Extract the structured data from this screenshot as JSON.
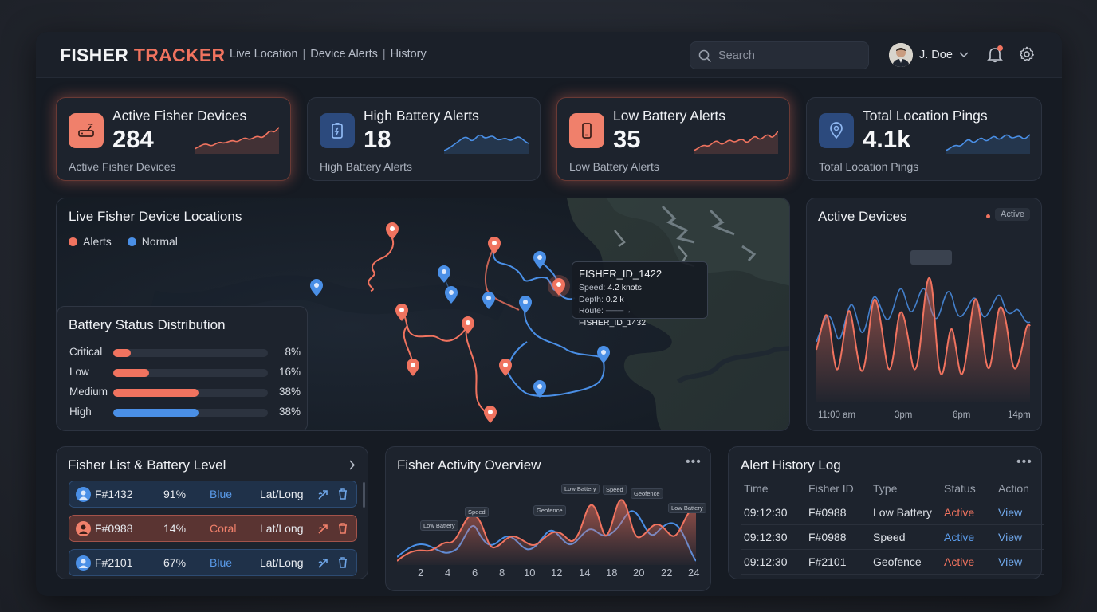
{
  "header": {
    "brand_main": "FISHER",
    "brand_accent": "TRACKER",
    "nav": [
      "Live Location",
      "Device Alerts",
      "History"
    ],
    "search_placeholder": "Search",
    "user_name": "J. Doe"
  },
  "stats": [
    {
      "title": "Active Fisher Devices",
      "value": "284",
      "subtitle": "Active Fisher Devices",
      "icon": "router-icon",
      "accent": "#f0735f"
    },
    {
      "title": "High Battery Alerts",
      "value": "18",
      "subtitle": "High Battery Alerts",
      "icon": "battery-charging-icon",
      "accent": "#5a9bea"
    },
    {
      "title": "Low Battery Alerts",
      "value": "35",
      "subtitle": "Low Battery Alerts",
      "icon": "phone-icon",
      "accent": "#f0735f"
    },
    {
      "title": "Total Location Pings",
      "value": "4.1k",
      "subtitle": "Total Location Pings",
      "icon": "location-pin-icon",
      "accent": "#5a9bea"
    }
  ],
  "map": {
    "title": "Live Fisher Device Locations",
    "legend": [
      {
        "label": "Alerts",
        "color": "#f0735f"
      },
      {
        "label": "Normal",
        "color": "#4a8fe6"
      }
    ],
    "tooltip": {
      "title": "FISHER_ID_1422",
      "speed_label": "Speed:",
      "speed_value": "4.2 knots",
      "depth_label": "Depth:",
      "depth_value": "0.2 k",
      "route_label": "Route:",
      "route_value": "FISHER_ID_1432"
    }
  },
  "battery_status": {
    "title": "Battery Status Distribution",
    "rows": [
      {
        "label": "Critical",
        "pct_text": "8%",
        "value": 0.08,
        "color": "#f0735f"
      },
      {
        "label": "Low",
        "pct_text": "16%",
        "value": 0.16,
        "color": "#f0735f"
      },
      {
        "label": "Medium",
        "pct_text": "38%",
        "value": 0.38,
        "color": "#f0735f"
      },
      {
        "label": "High",
        "pct_text": "38%",
        "value": 0.38,
        "color": "#4a8fe6"
      }
    ]
  },
  "active_devices": {
    "title": "Active Devices",
    "badge": "Active",
    "x_labels": [
      "11:00 am",
      "3pm",
      "6pm",
      "14pm"
    ]
  },
  "fisher_list": {
    "title": "Fisher List & Battery Level",
    "rows": [
      {
        "id": "F#1432",
        "battery": "91%",
        "color_name": "Blue",
        "coords": "Lat/Long",
        "style": "blue"
      },
      {
        "id": "F#0988",
        "battery": "14%",
        "color_name": "Coral",
        "coords": "Lat/Long",
        "style": "coral"
      },
      {
        "id": "F#2101",
        "battery": "67%",
        "color_name": "Blue",
        "coords": "Lat/Long",
        "style": "blue"
      }
    ]
  },
  "activity": {
    "title": "Fisher Activity Overview",
    "x_labels": [
      "2",
      "4",
      "6",
      "8",
      "10",
      "12",
      "14",
      "18",
      "20",
      "22",
      "24"
    ],
    "tags": [
      "Low Battery",
      "Speed",
      "Geofence",
      "Speed",
      "Geofence",
      "Low Battery",
      "Speed",
      "Geofence"
    ]
  },
  "alert_log": {
    "title": "Alert History Log",
    "columns": [
      "Time",
      "Fisher ID",
      "Type",
      "Status",
      "Action"
    ],
    "rows": [
      {
        "time": "09:12:30",
        "id": "F#0988",
        "type": "Low Battery",
        "status": "Active",
        "action": "View"
      },
      {
        "time": "09:12:30",
        "id": "F#0988",
        "type": "Speed",
        "status": "Active",
        "action": "View"
      },
      {
        "time": "09:12:30",
        "id": "F#2101",
        "type": "Geofence",
        "status": "Active",
        "action": "View"
      }
    ]
  }
}
